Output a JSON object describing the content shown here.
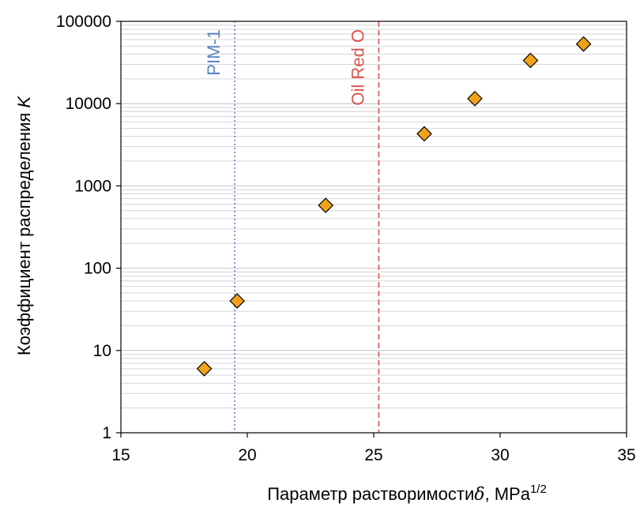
{
  "chart_data": {
    "type": "scatter",
    "title": "",
    "xlabel": "Параметр растворимости",
    "xlabel_symbol": "δ",
    "xlabel_unit_base": ", MPa",
    "xlabel_unit_exp": "1/2",
    "ylabel": "Коэффициент распределения",
    "ylabel_symbol": "K",
    "xlim": [
      15,
      35
    ],
    "ylim": [
      1,
      100000
    ],
    "yscale": "log",
    "x_ticks": [
      "15",
      "20",
      "25",
      "30",
      "35"
    ],
    "y_ticks": [
      "1",
      "10",
      "100",
      "1000",
      "10000",
      "100000"
    ],
    "grid": "horizontal minor",
    "legend": "none",
    "marker": "diamond",
    "marker_color": "#f0a31a",
    "marker_edge": "#000000",
    "series": [
      {
        "points": [
          {
            "x": 18.3,
            "y": 6
          },
          {
            "x": 19.6,
            "y": 40
          },
          {
            "x": 23.1,
            "y": 580
          },
          {
            "x": 27.0,
            "y": 4300
          },
          {
            "x": 29.0,
            "y": 11500
          },
          {
            "x": 31.2,
            "y": 33500
          },
          {
            "x": 33.3,
            "y": 53000
          }
        ]
      }
    ],
    "vlines": [
      {
        "label": "PIM-1",
        "x": 19.5,
        "color": "#5b84c4",
        "style": "dotted"
      },
      {
        "label": "Oil Red O",
        "x": 25.2,
        "color": "#d9534f",
        "style": "dashed"
      }
    ]
  }
}
